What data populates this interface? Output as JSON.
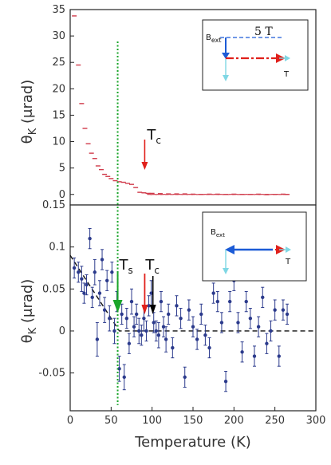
{
  "chart_data": [
    {
      "type": "scatter",
      "panel": "top",
      "ylabel_main": "θ",
      "ylabel_sub": "K",
      "ylabel_unit": "(μrad)",
      "xlim": [
        0,
        300
      ],
      "ylim": [
        -2,
        35
      ],
      "yticks": [
        0,
        5,
        10,
        15,
        20,
        25,
        30,
        35
      ],
      "marker_color": "#d03a4a",
      "series": [
        {
          "x": [
            5,
            10,
            14,
            18,
            22,
            26,
            30,
            34,
            38,
            42,
            46,
            50,
            55,
            60,
            65,
            70,
            75,
            80,
            85,
            90,
            95,
            100,
            110,
            120,
            130,
            140,
            150,
            160,
            170,
            180,
            190,
            200,
            210,
            220,
            230,
            240,
            250,
            260,
            265
          ],
          "y": [
            33.8,
            24.5,
            17.2,
            12.5,
            9.6,
            7.8,
            6.8,
            5.4,
            4.7,
            3.8,
            3.4,
            3.0,
            2.6,
            2.4,
            2.3,
            2.1,
            1.9,
            1.3,
            0.4,
            0.3,
            0.2,
            0.2,
            0.15,
            0.1,
            0.1,
            0.1,
            0.05,
            0.0,
            0.05,
            0.05,
            0.0,
            0.05,
            0.0,
            0.0,
            0.05,
            -0.05,
            0.0,
            0.05,
            0.0
          ]
        }
      ],
      "annotations": {
        "tc_label": "T",
        "tc_sub": "c",
        "tc_x": 91
      },
      "inset": {
        "field_label": "5 T",
        "b_label": "B",
        "b_sub": "ext",
        "t_label": "T"
      }
    },
    {
      "type": "scatter",
      "panel": "bottom",
      "ylabel_main": "θ",
      "ylabel_sub": "K",
      "ylabel_unit": "(μrad)",
      "xlabel": "Temperature (K)",
      "xlim": [
        0,
        300
      ],
      "ylim": [
        -0.095,
        0.15
      ],
      "yticks": [
        -0.05,
        0,
        0.05,
        0.1,
        0.15
      ],
      "ytick_labels": [
        "-0.05",
        "0",
        "0.05",
        "0.1",
        "0.15"
      ],
      "xticks": [
        0,
        50,
        100,
        150,
        200,
        250,
        300
      ],
      "marker_color": "#2b3a8c",
      "series": [
        {
          "x": [
            5,
            10,
            14,
            17,
            20,
            24,
            27,
            30,
            33,
            36,
            39,
            42,
            45,
            48,
            51,
            54,
            57,
            60,
            63,
            66,
            69,
            72,
            75,
            78,
            81,
            84,
            87,
            90,
            93,
            96,
            99,
            102,
            105,
            108,
            111,
            114,
            117,
            120,
            125,
            130,
            135,
            140,
            145,
            150,
            155,
            160,
            165,
            170,
            175,
            180,
            185,
            190,
            195,
            200,
            205,
            210,
            215,
            220,
            225,
            230,
            235,
            240,
            245,
            250,
            255,
            260,
            265
          ],
          "y": [
            0.075,
            0.07,
            0.062,
            0.045,
            0.055,
            0.11,
            0.04,
            0.07,
            -0.01,
            0.045,
            0.085,
            0.025,
            0.06,
            0.015,
            0.07,
            0.0,
            0.035,
            -0.045,
            0.02,
            -0.055,
            0.015,
            -0.015,
            0.035,
            0.005,
            0.02,
            0.0,
            -0.005,
            0.015,
            0.0,
            0.03,
            0.045,
            0.01,
            0.0,
            -0.005,
            0.035,
            0.005,
            -0.01,
            0.02,
            -0.02,
            0.03,
            0.015,
            -0.055,
            0.025,
            0.005,
            -0.01,
            0.02,
            -0.005,
            -0.02,
            0.045,
            0.035,
            0.01,
            -0.06,
            0.035,
            0.06,
            0.01,
            -0.025,
            0.035,
            0.015,
            -0.03,
            0.005,
            0.04,
            -0.015,
            0.0,
            0.025,
            -0.03,
            0.025,
            0.02
          ],
          "err": [
            0.012,
            0.012,
            0.015,
            0.012,
            0.012,
            0.012,
            0.012,
            0.015,
            0.02,
            0.015,
            0.012,
            0.015,
            0.012,
            0.015,
            0.012,
            0.015,
            0.012,
            0.015,
            0.012,
            0.015,
            0.012,
            0.012,
            0.015,
            0.012,
            0.012,
            0.015,
            0.012,
            0.015,
            0.012,
            0.012,
            0.015,
            0.012,
            0.012,
            0.015,
            0.012,
            0.012,
            0.015,
            0.012,
            0.012,
            0.012,
            0.012,
            0.012,
            0.012,
            0.012,
            0.012,
            0.012,
            0.012,
            0.012,
            0.012,
            0.012,
            0.012,
            0.012,
            0.012,
            0.012,
            0.012,
            0.012,
            0.012,
            0.012,
            0.012,
            0.012,
            0.012,
            0.012,
            0.012,
            0.012,
            0.012,
            0.012,
            0.012
          ]
        }
      ],
      "guide_line": {
        "x": [
          0,
          60,
          300
        ],
        "y": [
          0.09,
          0.0,
          0.0
        ]
      },
      "annotations": {
        "ts_label": "T",
        "ts_sub": "s",
        "ts_x": 58,
        "tc_label": "T",
        "tc_sub": "c",
        "tc_x": 91,
        "tc2_x": 101
      },
      "inset": {
        "b_label": "B",
        "b_sub": "ext",
        "t_label": "T"
      }
    }
  ],
  "colors": {
    "green": "#1aa52a",
    "red": "#e0201b",
    "blue": "#1c5bd6",
    "cyan": "#7fd7e4",
    "black": "#000000"
  }
}
